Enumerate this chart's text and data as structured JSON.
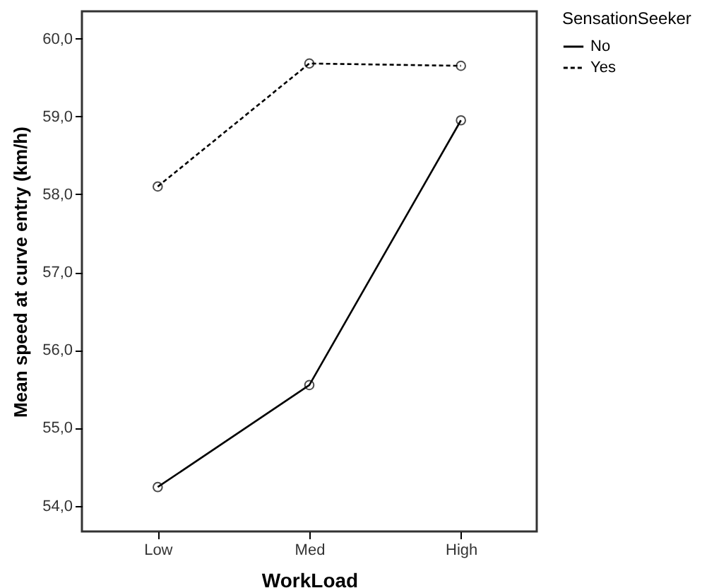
{
  "chart_data": {
    "type": "line",
    "xlabel": "WorkLoad",
    "ylabel": "Mean speed at curve entry (km/h)",
    "legend_title": "SensationSeeker",
    "categories": [
      "Low",
      "Med",
      "High"
    ],
    "series": [
      {
        "name": "No",
        "color": "#000000",
        "line_style": "solid",
        "values": [
          54.24,
          55.55,
          58.95
        ]
      },
      {
        "name": "Yes",
        "color": "#000000",
        "line_style": "dashed",
        "values": [
          58.1,
          59.68,
          59.65
        ]
      }
    ],
    "ylim": [
      53.67,
      60.35
    ],
    "yticks": [
      {
        "value": 54,
        "label": "54,0"
      },
      {
        "value": 55,
        "label": "55,0"
      },
      {
        "value": 56,
        "label": "56,0"
      },
      {
        "value": 57,
        "label": "57,0"
      },
      {
        "value": 58,
        "label": "58,0"
      },
      {
        "value": 59,
        "label": "59,0"
      },
      {
        "value": 60,
        "label": "60,0"
      }
    ],
    "marker": "circle",
    "grid": false,
    "legend": "top right"
  }
}
